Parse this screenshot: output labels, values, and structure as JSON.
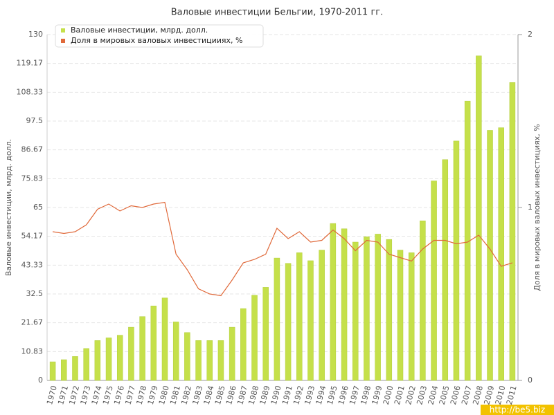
{
  "chart_data": {
    "type": "bar_line",
    "title": "Валовые инвестиции Бельгии, 1970-2011 гг.",
    "y_label": "Валовые инвестиции, млрд. долл.",
    "y2_label": "Доля в мировых валовых инвестициях, %",
    "watermark": "http://be5.biz",
    "categories": [
      "1970",
      "1971",
      "1972",
      "1973",
      "1974",
      "1975",
      "1976",
      "1977",
      "1978",
      "1979",
      "1980",
      "1981",
      "1982",
      "1983",
      "1984",
      "1985",
      "1986",
      "1987",
      "1988",
      "1989",
      "1990",
      "1991",
      "1992",
      "1993",
      "1994",
      "1995",
      "1996",
      "1997",
      "1998",
      "1999",
      "2000",
      "2001",
      "2002",
      "2003",
      "2004",
      "2005",
      "2006",
      "2007",
      "2008",
      "2009",
      "2010",
      "2011"
    ],
    "series": [
      {
        "name": "Валовые инвестиции, млрд. долл.",
        "color": "#c5e04a",
        "type": "bar",
        "values": [
          7,
          7.8,
          9,
          12,
          15,
          16,
          17,
          20,
          24,
          28,
          31,
          22,
          18,
          15,
          15,
          15,
          20,
          27,
          32,
          35,
          46,
          44,
          48,
          45,
          49,
          59,
          57,
          52,
          54,
          55,
          53,
          49,
          48,
          60,
          75,
          83,
          90,
          105,
          122,
          94,
          95,
          112
        ]
      },
      {
        "name": "Доля в мировых валовых инвестициияx, %",
        "color": "#e0693a",
        "type": "line",
        "axis": "y2",
        "values": [
          0.86,
          0.85,
          0.86,
          0.9,
          0.99,
          1.02,
          0.98,
          1.01,
          1.0,
          1.02,
          1.03,
          0.73,
          0.64,
          0.53,
          0.5,
          0.49,
          0.58,
          0.68,
          0.7,
          0.73,
          0.88,
          0.82,
          0.86,
          0.8,
          0.81,
          0.87,
          0.82,
          0.75,
          0.81,
          0.8,
          0.73,
          0.71,
          0.69,
          0.76,
          0.81,
          0.81,
          0.79,
          0.8,
          0.84,
          0.76,
          0.66,
          0.68
        ]
      }
    ],
    "ylim": [
      0,
      130
    ],
    "yticks": [
      0,
      10.83,
      21.67,
      32.5,
      43.33,
      54.17,
      65,
      75.83,
      86.67,
      97.5,
      108.33,
      119.17,
      130
    ],
    "y2lim": [
      0,
      2
    ],
    "y2ticks": [
      0,
      1,
      2
    ],
    "grid": true,
    "legend": "top-left"
  }
}
